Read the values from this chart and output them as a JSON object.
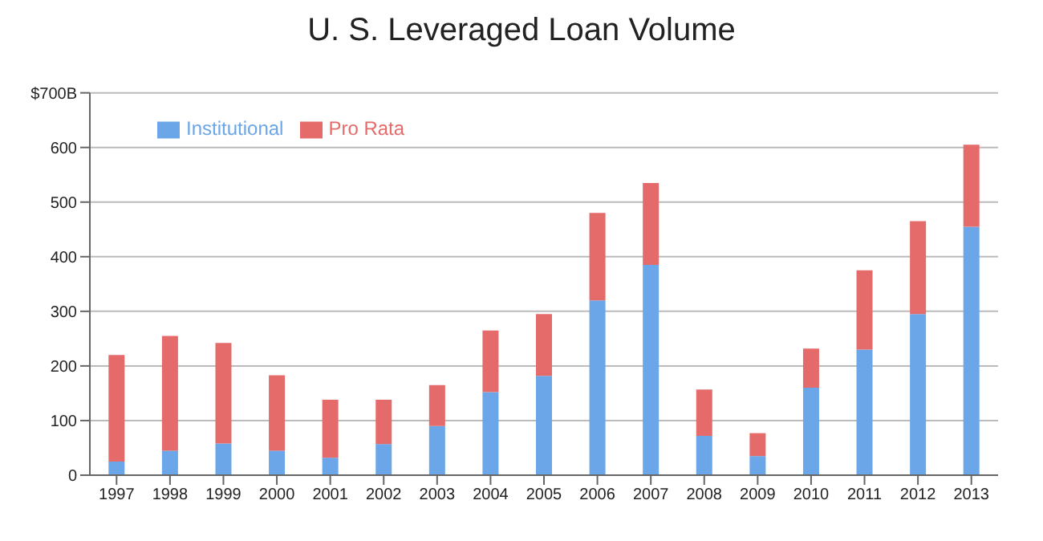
{
  "chart_data": {
    "type": "bar",
    "title": "U. S. Leveraged Loan Volume",
    "stacked": true,
    "categories": [
      "1997",
      "1998",
      "1999",
      "2000",
      "2001",
      "2002",
      "2003",
      "2004",
      "2005",
      "2006",
      "2007",
      "2008",
      "2009",
      "2010",
      "2011",
      "2012",
      "2013"
    ],
    "series": [
      {
        "name": "Institutional",
        "color": "#6aa6e8",
        "values": [
          25,
          45,
          58,
          45,
          32,
          57,
          90,
          152,
          182,
          320,
          385,
          72,
          35,
          160,
          230,
          295,
          455
        ]
      },
      {
        "name": "Pro Rata",
        "color": "#e56b6b",
        "values": [
          195,
          210,
          184,
          138,
          106,
          81,
          75,
          113,
          113,
          160,
          150,
          85,
          42,
          72,
          145,
          170,
          150
        ]
      }
    ],
    "ylim": [
      0,
      700
    ],
    "yticks": [
      0,
      100,
      200,
      300,
      400,
      500,
      600,
      {
        "value": 700,
        "label": "$700B"
      }
    ],
    "grid": "y",
    "legend": "top left"
  }
}
